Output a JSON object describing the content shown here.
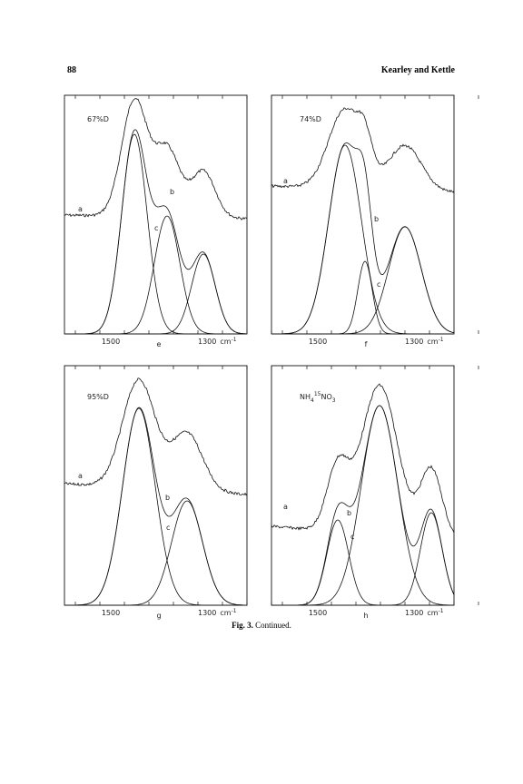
{
  "header": {
    "page_number": "88",
    "authors": "Kearley and Kettle"
  },
  "panels": [
    {
      "sample": "67%D",
      "curve_labels": [
        "a",
        "b",
        "c"
      ],
      "x_ticks": [
        "1500",
        "1300"
      ],
      "unit": "cm",
      "unit_exponent": "-1",
      "panel_letter": "e"
    },
    {
      "sample": "74%D",
      "curve_labels": [
        "a",
        "b",
        "c"
      ],
      "x_ticks": [
        "1500",
        "1300"
      ],
      "unit": "cm",
      "unit_exponent": "-1",
      "panel_letter": "f"
    },
    {
      "sample": "95%D",
      "curve_labels": [
        "a",
        "b",
        "c"
      ],
      "x_ticks": [
        "1500",
        "1300"
      ],
      "unit": "cm",
      "unit_exponent": "-1",
      "panel_letter": "g"
    },
    {
      "sample_parts": [
        "NH",
        "4",
        "15",
        "NO",
        "3"
      ],
      "curve_labels": [
        "a",
        "b",
        "c"
      ],
      "x_ticks": [
        "1500",
        "1300"
      ],
      "unit": "cm",
      "unit_exponent": "-1",
      "panel_letter": "h"
    }
  ],
  "caption": {
    "label": "Fig. 3.",
    "text": "Continued."
  }
}
